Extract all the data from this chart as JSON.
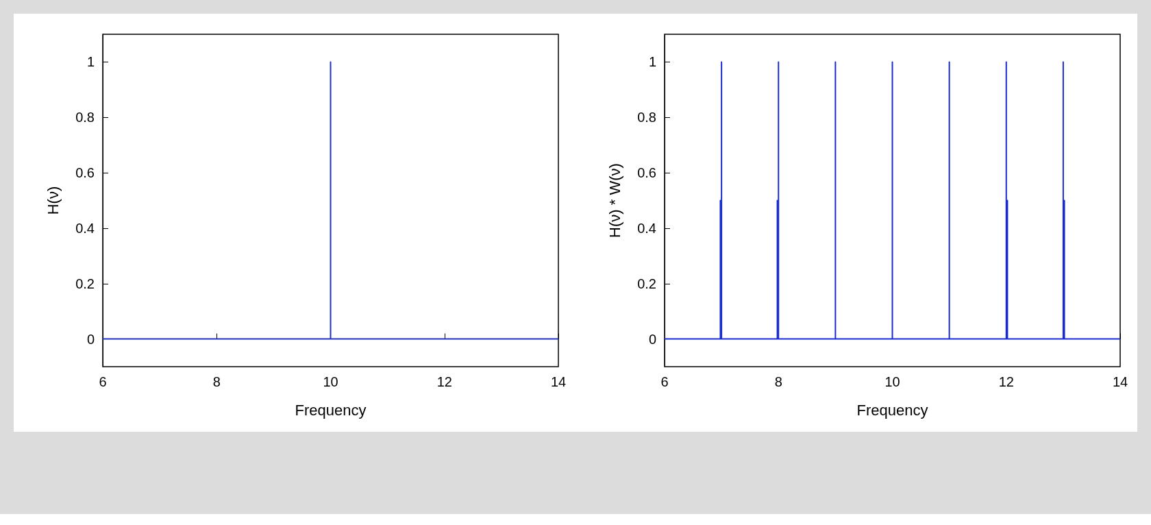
{
  "chart_data": [
    {
      "type": "line",
      "xlabel": "Frequency",
      "ylabel": "H(ν)",
      "xlim": [
        6,
        14
      ],
      "xticks": [
        6,
        8,
        10,
        12,
        14
      ],
      "ylim": [
        -0.1,
        1.1
      ],
      "yticks": [
        0,
        0.2,
        0.4,
        0.6,
        0.8,
        1
      ],
      "marker": "none",
      "series": [
        {
          "color": "#2233bb",
          "x": [
            6,
            10,
            10,
            10,
            14
          ],
          "values": [
            0,
            0,
            1,
            0,
            0
          ]
        }
      ]
    },
    {
      "type": "line",
      "xlabel": "Frequency",
      "ylabel": "H(ν) * W(ν)",
      "xlim": [
        6,
        14
      ],
      "xticks": [
        6,
        8,
        10,
        12,
        14
      ],
      "ylim": [
        -0.1,
        1.1
      ],
      "yticks": [
        0,
        0.2,
        0.4,
        0.6,
        0.8,
        1
      ],
      "marker": "none",
      "series": [
        {
          "color": "#1a2ccc",
          "x": [
            6,
            6.98,
            6.98,
            6.98,
            7,
            7,
            7,
            7.98,
            7.98,
            7.98,
            8,
            8,
            8,
            9,
            9,
            9,
            10,
            10,
            10,
            11,
            11,
            11,
            12,
            12,
            12,
            12.02,
            12.02,
            12.02,
            13,
            13,
            13,
            13.02,
            13.02,
            13.02,
            14
          ],
          "values": [
            0,
            0,
            0.5,
            0,
            0,
            1,
            0,
            0,
            0.5,
            0,
            0,
            1,
            0,
            0,
            1,
            0,
            0,
            1,
            0,
            0,
            1,
            0,
            0,
            1,
            0,
            0,
            0.5,
            0,
            0,
            1,
            0,
            0,
            0.5,
            0,
            0
          ]
        }
      ]
    }
  ]
}
